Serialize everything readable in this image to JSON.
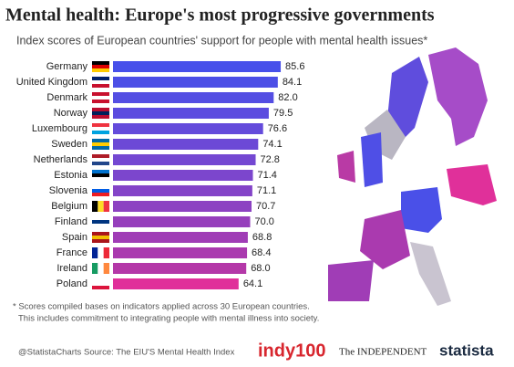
{
  "chart_data": {
    "type": "bar",
    "orientation": "horizontal",
    "title": "Mental health: Europe's most progressive governments",
    "subtitle": "Index scores of European countries' support for people with mental health issues*",
    "categories": [
      "Germany",
      "United Kingdom",
      "Denmark",
      "Norway",
      "Luxembourg",
      "Sweden",
      "Netherlands",
      "Estonia",
      "Slovenia",
      "Belgium",
      "Finland",
      "Spain",
      "France",
      "Ireland",
      "Poland"
    ],
    "values": [
      85.6,
      84.1,
      82,
      79.5,
      76.6,
      74.1,
      72.8,
      71.4,
      71.1,
      70.7,
      70,
      68.8,
      68.4,
      68,
      64.1
    ],
    "value_labels": [
      "85.6",
      "84.1",
      "82.0",
      "79.5",
      "76.6",
      "74.1",
      "72.8",
      "71.4",
      "71.1",
      "70.7",
      "70.0",
      "68.8",
      "68.4",
      "68.0",
      "64.1"
    ],
    "colors": [
      "#4750ea",
      "#4c4fe6",
      "#544ee3",
      "#5c4cdf",
      "#644bdb",
      "#6c49d6",
      "#7448d2",
      "#7c46cd",
      "#8444c8",
      "#8c42c2",
      "#963fbc",
      "#a03db6",
      "#aa3aaf",
      "#b438a8",
      "#e0309a"
    ],
    "xlim": [
      0,
      100
    ],
    "notes": [
      "* Scores compiled bases on indicators applied across 30 European countries.",
      "This includes commitment to integrating people with mental illness into society."
    ],
    "handle": "@StatistaCharts",
    "source": "Source: The EIU'S Mental Health Index",
    "logos": [
      "indy100",
      "The INDEPENDENT",
      "statista"
    ]
  }
}
